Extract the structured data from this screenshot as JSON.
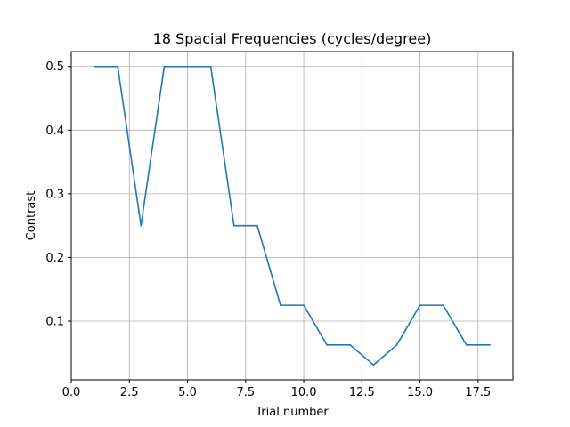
{
  "chart_data": {
    "type": "line",
    "title": "18 Spacial Frequencies (cycles/degree)",
    "xlabel": "Trial number",
    "ylabel": "Contrast",
    "xlim": [
      0,
      19
    ],
    "ylim": [
      0.0078,
      0.5234
    ],
    "xticks": [
      0.0,
      2.5,
      5.0,
      7.5,
      10.0,
      12.5,
      15.0,
      17.5
    ],
    "xtick_labels": [
      "0.0",
      "2.5",
      "5.0",
      "7.5",
      "10.0",
      "12.5",
      "15.0",
      "17.5"
    ],
    "yticks": [
      0.1,
      0.2,
      0.3,
      0.4,
      0.5
    ],
    "ytick_labels": [
      "0.1",
      "0.2",
      "0.3",
      "0.4",
      "0.5"
    ],
    "grid": true,
    "series": [
      {
        "color": "#1f77b4",
        "x": [
          1,
          2,
          3,
          4,
          5,
          6,
          7,
          8,
          9,
          10,
          11,
          12,
          13,
          14,
          15,
          16,
          17,
          18
        ],
        "y": [
          0.5,
          0.5,
          0.25,
          0.5,
          0.5,
          0.5,
          0.25,
          0.25,
          0.125,
          0.125,
          0.0625,
          0.0625,
          0.03125,
          0.0625,
          0.125,
          0.125,
          0.0625,
          0.0625
        ]
      }
    ]
  }
}
